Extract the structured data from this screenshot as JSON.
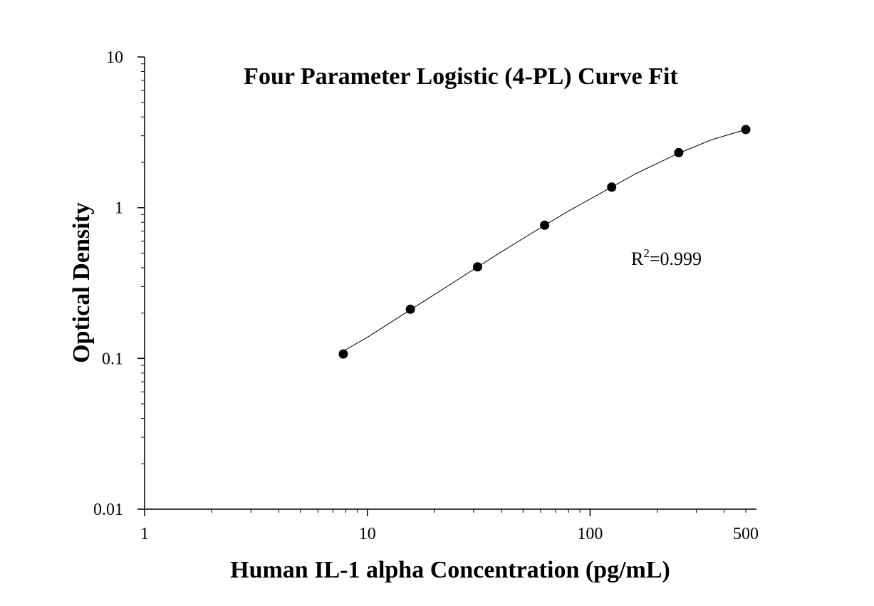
{
  "chart_data": {
    "type": "scatter",
    "title": "Four Parameter Logistic (4-PL) Curve Fit",
    "xlabel": "Human IL-1 alpha Concentration (pg/mL)",
    "ylabel": "Optical Density",
    "x_scale": "log",
    "y_scale": "log",
    "xlim": [
      1,
      500
    ],
    "ylim": [
      0.01,
      10
    ],
    "x_tick_labels": [
      "1",
      "10",
      "100",
      "500"
    ],
    "y_tick_labels": [
      "0.01",
      "0.1",
      "1",
      "10"
    ],
    "grid": false,
    "annotation": {
      "base": "R",
      "superscript": "2",
      "suffix": "=0.999"
    },
    "series": [
      {
        "x": [
          7.8,
          15.6,
          31.25,
          62.5,
          125,
          250,
          500
        ],
        "y": [
          0.107,
          0.212,
          0.405,
          0.765,
          1.37,
          2.32,
          3.3
        ],
        "marker": "circle",
        "color": "#000000"
      }
    ],
    "fit_line": {
      "x": [
        7.8,
        10,
        15.6,
        20,
        31.25,
        40,
        62.5,
        80,
        125,
        160,
        250,
        350,
        500
      ],
      "y": [
        0.112,
        0.138,
        0.21,
        0.265,
        0.405,
        0.51,
        0.765,
        0.95,
        1.37,
        1.68,
        2.3,
        2.82,
        3.3
      ],
      "color": "#000000"
    }
  }
}
